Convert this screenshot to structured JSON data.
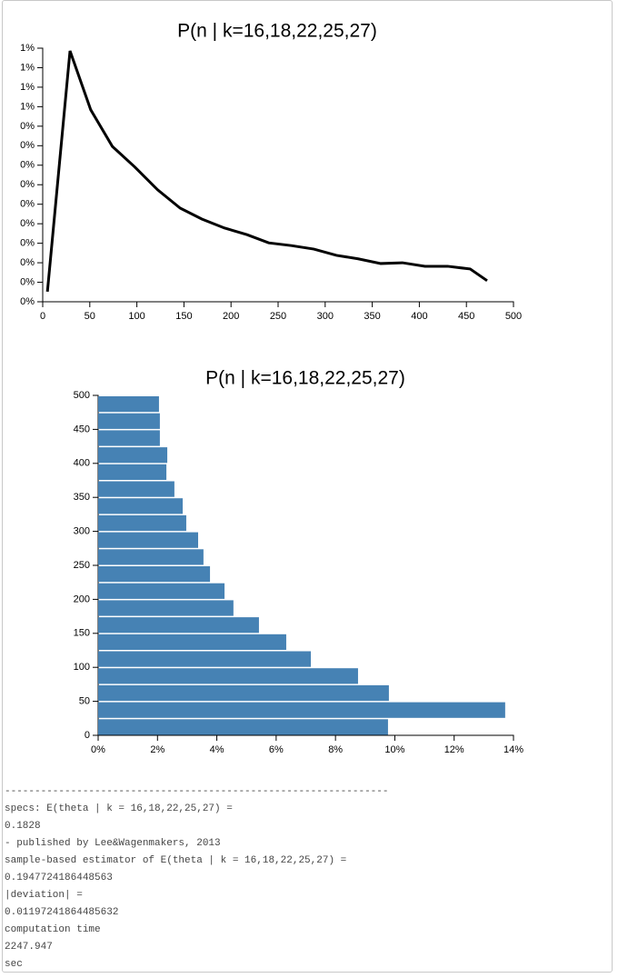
{
  "chart_data": [
    {
      "type": "line",
      "title": "P(n | k=16,18,22,25,27)",
      "color": "#000000",
      "x": [
        5,
        29,
        51,
        74,
        98,
        122,
        146,
        169,
        193,
        217,
        240,
        264,
        288,
        312,
        335,
        359,
        382,
        406,
        430,
        454,
        472
      ],
      "values": [
        0.026,
        0.643,
        0.492,
        0.398,
        0.345,
        0.287,
        0.24,
        0.212,
        0.189,
        0.172,
        0.151,
        0.144,
        0.135,
        0.119,
        0.11,
        0.098,
        0.1,
        0.091,
        0.091,
        0.084,
        0.054
      ],
      "xlim": [
        0,
        500
      ],
      "xticks": [
        0,
        50,
        100,
        150,
        200,
        250,
        300,
        350,
        400,
        450,
        500
      ],
      "ylim": [
        0,
        0.65
      ],
      "yticks": [
        {
          "value": 0,
          "label": "0%"
        },
        {
          "value": 0.05,
          "label": "0%"
        },
        {
          "value": 0.1,
          "label": "0%"
        },
        {
          "value": 0.15,
          "label": "0%"
        },
        {
          "value": 0.2,
          "label": "0%"
        },
        {
          "value": 0.25,
          "label": "0%"
        },
        {
          "value": 0.3,
          "label": "0%"
        },
        {
          "value": 0.35,
          "label": "0%"
        },
        {
          "value": 0.4,
          "label": "0%"
        },
        {
          "value": 0.45,
          "label": "0%"
        },
        {
          "value": 0.5,
          "label": "1%"
        },
        {
          "value": 0.55,
          "label": "1%"
        },
        {
          "value": 0.6,
          "label": "1%"
        },
        {
          "value": 0.65,
          "label": "1%"
        }
      ]
    },
    {
      "type": "histogram",
      "orientation": "horizontal",
      "title": "P(n | k=16,18,22,25,27)",
      "color": "#4682b4",
      "bins": [
        0,
        25,
        50,
        75,
        100,
        125,
        150,
        175,
        200,
        225,
        250,
        275,
        300,
        325,
        350,
        375,
        400,
        425,
        450,
        475,
        500
      ],
      "values": [
        9.77,
        13.72,
        9.8,
        8.76,
        7.17,
        6.34,
        5.42,
        4.56,
        4.26,
        3.77,
        3.55,
        3.37,
        2.97,
        2.85,
        2.57,
        2.3,
        2.33,
        2.08,
        2.08,
        2.05
      ],
      "xlim": [
        0,
        14
      ],
      "xticks": [
        {
          "value": 0,
          "label": "0%"
        },
        {
          "value": 2,
          "label": "2%"
        },
        {
          "value": 4,
          "label": "4%"
        },
        {
          "value": 6,
          "label": "6%"
        },
        {
          "value": 8,
          "label": "8%"
        },
        {
          "value": 10,
          "label": "10%"
        },
        {
          "value": 12,
          "label": "12%"
        },
        {
          "value": 14,
          "label": "14%"
        }
      ],
      "ylim": [
        0,
        500
      ],
      "yticks": [
        0,
        50,
        100,
        150,
        200,
        250,
        300,
        350,
        400,
        450,
        500
      ]
    }
  ],
  "output": {
    "lines": [
      "----------------------------------------------------------------",
      "specs: E(theta | k = 16,18,22,25,27) =",
      "0.1828",
      "- published by Lee&Wagenmakers, 2013",
      "sample-based estimator of E(theta | k = 16,18,22,25,27) =",
      "0.1947724186448563",
      "|deviation| =",
      "0.01197241864485632",
      "computation time",
      "2247.947",
      "sec"
    ]
  }
}
